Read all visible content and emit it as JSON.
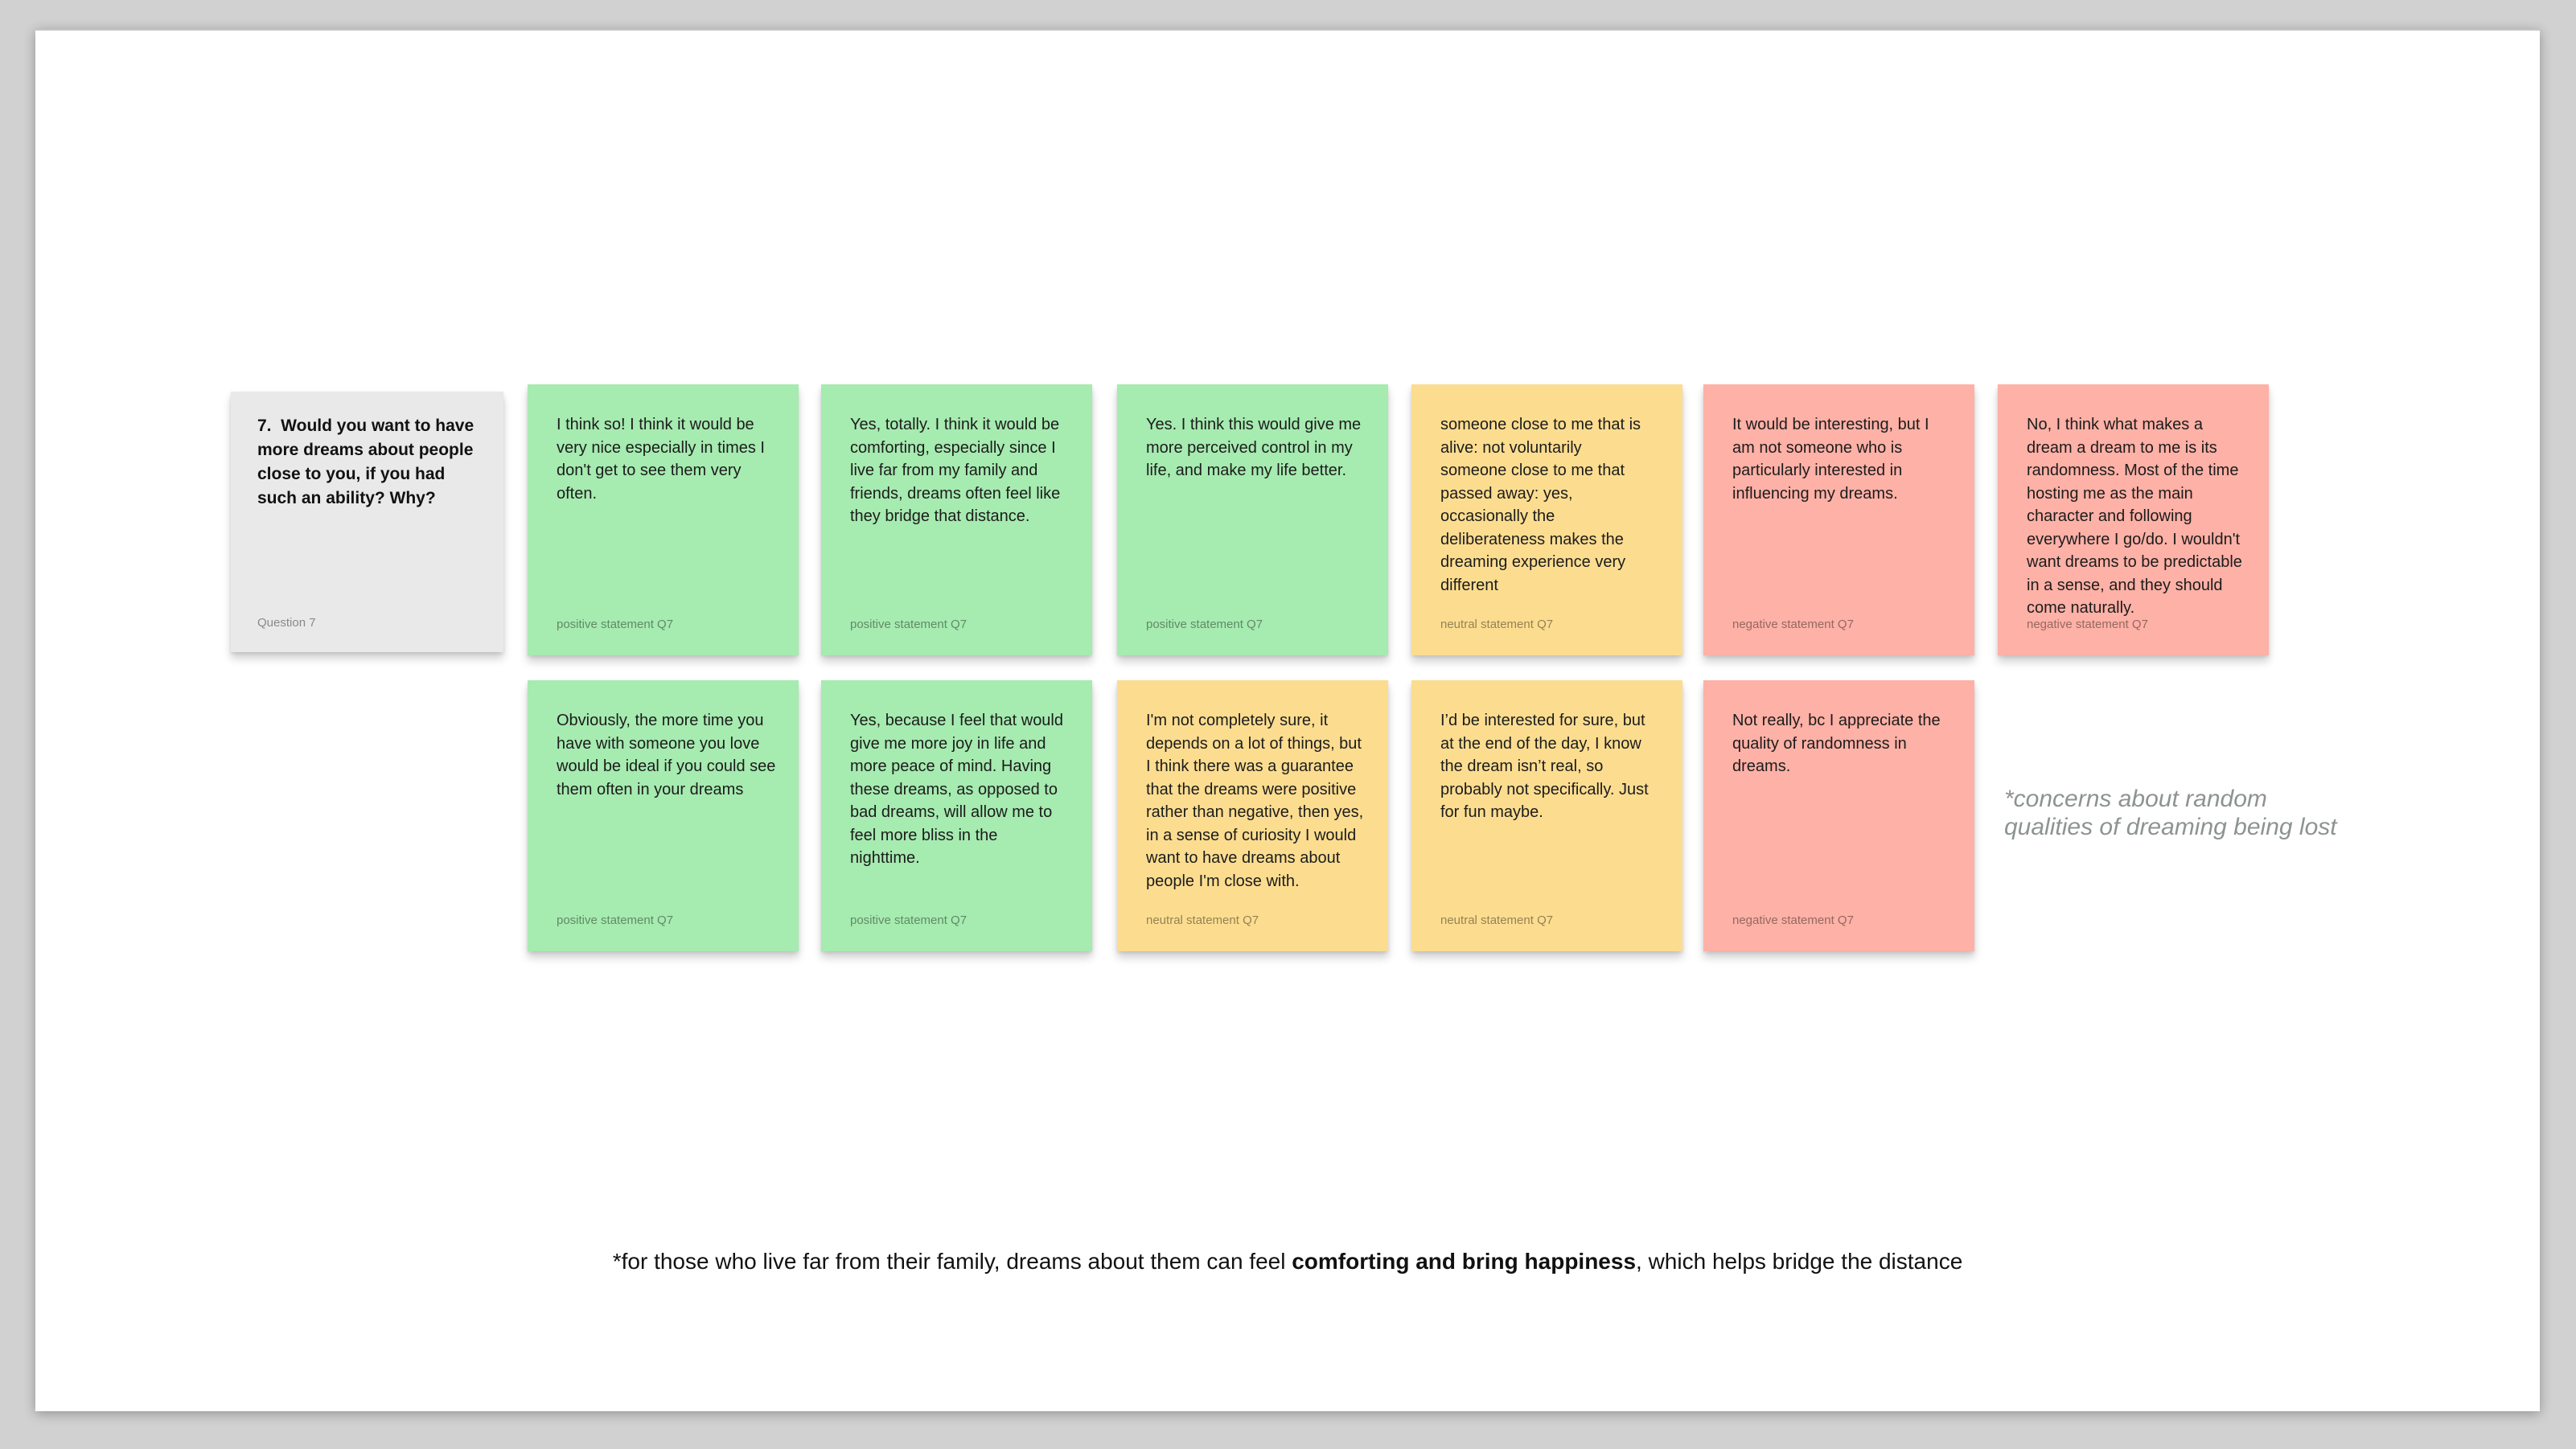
{
  "question_card": {
    "text": "7.  Would you want to have more dreams about people close to you, if you had such an ability? Why?",
    "label": "Question 7"
  },
  "notes": {
    "r1": [
      {
        "type": "positive",
        "label": "positive statement Q7",
        "text": "I think so! I think it would be very nice especially in times I don't get to see them very often."
      },
      {
        "type": "positive",
        "label": "positive statement Q7",
        "text": "Yes, totally. I think it would be comforting, especially since I live far from my family and friends, dreams often feel like they bridge that distance."
      },
      {
        "type": "positive",
        "label": "positive statement Q7",
        "text": "Yes. I think this would give me more perceived control in my life, and make my life better."
      },
      {
        "type": "neutral",
        "label": "neutral statement Q7",
        "text": "someone close to me that is alive: not voluntarily\nsomeone close to me that passed away: yes, occasionally the deliberateness makes the dreaming experience very different"
      },
      {
        "type": "negative",
        "label": "negative statement Q7",
        "text": "It would be interesting, but I am not someone who is particularly interested in influencing my dreams."
      },
      {
        "type": "negative",
        "label": "negative statement Q7",
        "text": "No, I think what makes a dream a dream to me is its randomness. Most of the time hosting me as the main character and following everywhere I go/do. I wouldn't want dreams to be predictable in a sense, and they should come naturally."
      }
    ],
    "r2": [
      {
        "type": "positive",
        "label": "positive statement Q7",
        "text": "Obviously, the more time you have with someone you love would be ideal if you could see them often in your dreams"
      },
      {
        "type": "positive",
        "label": "positive statement Q7",
        "text": "Yes, because I feel that would give me more joy in life and more peace of mind. Having these dreams, as opposed to bad dreams, will allow me to feel more bliss in the nighttime."
      },
      {
        "type": "neutral",
        "label": "neutral statement Q7",
        "text": "I'm not completely sure, it depends on a lot of things, but I think there was a guarantee that the dreams were positive rather than negative, then yes, in a sense of curiosity I would want to have dreams about people I'm close with."
      },
      {
        "type": "neutral",
        "label": "neutral statement Q7",
        "text": "I’d be interested for sure, but at the end of the day, I know the dream isn’t real, so probably not specifically. Just for fun maybe."
      },
      {
        "type": "negative",
        "label": "negative statement Q7",
        "text": "Not really, bc I appreciate the quality of randomness in dreams."
      }
    ]
  },
  "side_annotation": "*concerns about random\nqualities of dreaming being lost",
  "bottom_annotation": {
    "prefix": "*for those who live far from their family, dreams about them can feel ",
    "bold": "comforting and bring happiness",
    "suffix": ", which helps bridge the distance"
  },
  "colors": {
    "background": "#d1d1d1",
    "canvas": "#ffffff",
    "positive": "#a6ebb0",
    "neutral": "#fcdd90",
    "negative": "#feb1a6",
    "question": "#e9e9e9",
    "note_text": "#1c1c1c",
    "label_text": "rgba(0,0,0,0.42)",
    "annotation_gray": "#8d9392"
  }
}
